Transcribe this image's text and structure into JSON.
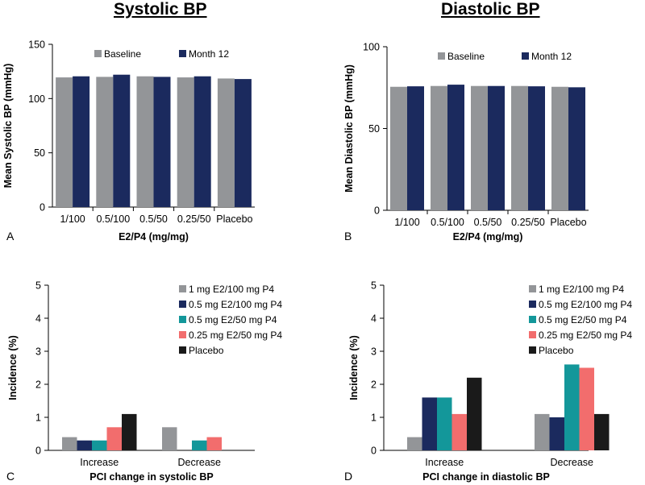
{
  "headings": {
    "left": "Systolic BP",
    "right": "Diastolic BP"
  },
  "colors": {
    "gray": "#939598",
    "navy": "#1b2a5e",
    "teal": "#13979a",
    "salmon": "#f26d6d",
    "black": "#1a1a1a"
  },
  "chart_data": [
    {
      "panel": "A",
      "type": "bar",
      "title": "Systolic BP",
      "xlabel": "E2/P4 (mg/mg)",
      "ylabel": "Mean Systolic BP (mmHg)",
      "ylim": [
        0,
        150
      ],
      "yticks": [
        0,
        50,
        100,
        150
      ],
      "categories": [
        "1/100",
        "0.5/100",
        "0.5/50",
        "0.25/50",
        "Placebo"
      ],
      "legend_position": "top-right",
      "series": [
        {
          "name": "Baseline",
          "color": "#939598",
          "values": [
            119.5,
            120,
            120.5,
            119.5,
            118.5
          ]
        },
        {
          "name": "Month 12",
          "color": "#1b2a5e",
          "values": [
            120.5,
            122,
            120,
            120.5,
            118
          ]
        }
      ]
    },
    {
      "panel": "B",
      "type": "bar",
      "title": "Diastolic BP",
      "xlabel": "E2/P4 (mg/mg)",
      "ylabel": "Mean Diastolic BP (mmHg)",
      "ylim": [
        0,
        100
      ],
      "yticks": [
        0,
        50,
        100
      ],
      "categories": [
        "1/100",
        "0.5/100",
        "0.5/50",
        "0.25/50",
        "Placebo"
      ],
      "legend_position": "top-right",
      "series": [
        {
          "name": "Baseline",
          "color": "#939598",
          "values": [
            75.5,
            76,
            76,
            76,
            75.5
          ]
        },
        {
          "name": "Month 12",
          "color": "#1b2a5e",
          "values": [
            75.8,
            76.8,
            76,
            75.8,
            75.2
          ]
        }
      ]
    },
    {
      "panel": "C",
      "type": "bar",
      "xlabel": "PCI change in systolic BP",
      "ylabel": "Incidence (%)",
      "ylim": [
        0,
        5
      ],
      "yticks": [
        0,
        1,
        2,
        3,
        4,
        5
      ],
      "categories": [
        "Increase",
        "Decrease"
      ],
      "legend_position": "top-right",
      "series": [
        {
          "name": "1 mg E2/100 mg P4",
          "color": "#939598",
          "values": [
            0.4,
            0.7
          ]
        },
        {
          "name": "0.5 mg E2/100 mg P4",
          "color": "#1b2a5e",
          "values": [
            0.3,
            0
          ]
        },
        {
          "name": "0.5 mg E2/50 mg P4",
          "color": "#13979a",
          "values": [
            0.3,
            0.3
          ]
        },
        {
          "name": "0.25 mg E2/50 mg P4",
          "color": "#f26d6d",
          "values": [
            0.7,
            0.4
          ]
        },
        {
          "name": "Placebo",
          "color": "#1a1a1a",
          "values": [
            1.1,
            0
          ]
        }
      ]
    },
    {
      "panel": "D",
      "type": "bar",
      "xlabel": "PCI change in diastolic BP",
      "ylabel": "Incidence (%)",
      "ylim": [
        0,
        5
      ],
      "yticks": [
        0,
        1,
        2,
        3,
        4,
        5
      ],
      "categories": [
        "Increase",
        "Decrease"
      ],
      "legend_position": "top-right",
      "series": [
        {
          "name": "1 mg E2/100 mg P4",
          "color": "#939598",
          "values": [
            0.4,
            1.1
          ]
        },
        {
          "name": "0.5 mg E2/100 mg P4",
          "color": "#1b2a5e",
          "values": [
            1.6,
            1.0
          ]
        },
        {
          "name": "0.5 mg E2/50 mg P4",
          "color": "#13979a",
          "values": [
            1.6,
            2.6
          ]
        },
        {
          "name": "0.25 mg E2/50 mg P4",
          "color": "#f26d6d",
          "values": [
            1.1,
            2.5
          ]
        },
        {
          "name": "Placebo",
          "color": "#1a1a1a",
          "values": [
            2.2,
            1.1
          ]
        }
      ]
    }
  ]
}
